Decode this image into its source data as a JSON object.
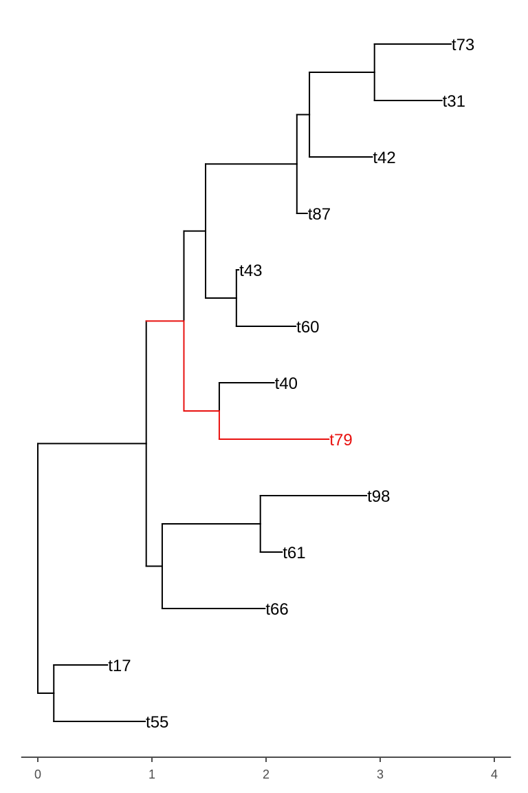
{
  "chart_data": {
    "type": "phylogenetic-tree",
    "x_axis": {
      "ticks": [
        0,
        1,
        2,
        3,
        4
      ],
      "range": [
        -0.2,
        4.2
      ]
    },
    "colors": {
      "default": "#000000",
      "highlight": "#e8110f",
      "axis": "#4d4d4d"
    },
    "tips": [
      {
        "label": "t73",
        "depth": 3.62,
        "highlight": false
      },
      {
        "label": "t31",
        "depth": 3.54,
        "highlight": false
      },
      {
        "label": "t42",
        "depth": 2.93,
        "highlight": false
      },
      {
        "label": "t87",
        "depth": 2.36,
        "highlight": false
      },
      {
        "label": "t43",
        "depth": 1.76,
        "highlight": false
      },
      {
        "label": "t60",
        "depth": 2.26,
        "highlight": false
      },
      {
        "label": "t40",
        "depth": 2.07,
        "highlight": false
      },
      {
        "label": "t79",
        "depth": 2.55,
        "highlight": true
      },
      {
        "label": "t98",
        "depth": 2.88,
        "highlight": false
      },
      {
        "label": "t61",
        "depth": 2.14,
        "highlight": false
      },
      {
        "label": "t66",
        "depth": 1.99,
        "highlight": false
      },
      {
        "label": "t17",
        "depth": 0.61,
        "highlight": false
      },
      {
        "label": "t55",
        "depth": 0.94,
        "highlight": false
      }
    ],
    "nodes": [
      {
        "id": "root",
        "depth": 0.0,
        "children": [
          "n17_55",
          "nA"
        ]
      },
      {
        "id": "n17_55",
        "depth": 0.14,
        "children": [
          "t17",
          "t55"
        ]
      },
      {
        "id": "nA",
        "depth": 0.95,
        "children": [
          "nB",
          "nC"
        ]
      },
      {
        "id": "nB",
        "depth": 1.28,
        "children": [
          "nD",
          "n40_79"
        ]
      },
      {
        "id": "nD",
        "depth": 1.47,
        "children": [
          "nE",
          "n43_60"
        ]
      },
      {
        "id": "nE",
        "depth": 2.27,
        "children": [
          "nF",
          "t87"
        ]
      },
      {
        "id": "nF",
        "depth": 2.38,
        "children": [
          "n73_31",
          "t42"
        ]
      },
      {
        "id": "n73_31",
        "depth": 2.95,
        "children": [
          "t73",
          "t31"
        ]
      },
      {
        "id": "n43_60",
        "depth": 1.74,
        "children": [
          "t43",
          "t60"
        ]
      },
      {
        "id": "n40_79",
        "depth": 1.59,
        "children": [
          "t40",
          "t79"
        ],
        "highlight_children": [
          "t79"
        ]
      },
      {
        "id": "nC",
        "depth": 1.09,
        "children": [
          "n98_61",
          "t66"
        ]
      },
      {
        "id": "n98_61",
        "depth": 1.95,
        "children": [
          "t98",
          "t61"
        ]
      }
    ],
    "highlight_path": [
      "nB",
      "n40_79",
      "t79"
    ]
  }
}
